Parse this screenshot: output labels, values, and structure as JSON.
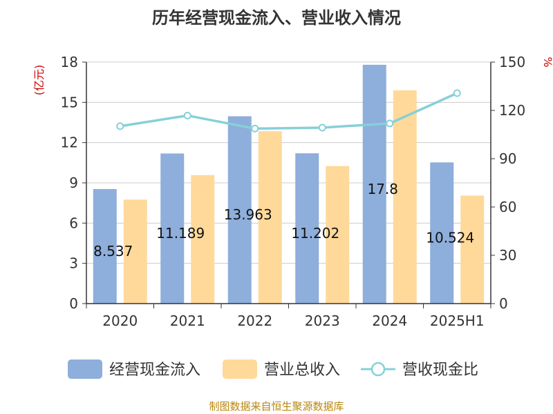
{
  "chart_data": {
    "type": "bar",
    "title": "历年经营现金流入、营业收入情况",
    "categories": [
      "2020",
      "2021",
      "2022",
      "2023",
      "2024",
      "2025H1"
    ],
    "y_left": {
      "unit": "(亿元)",
      "min": 0,
      "max": 18,
      "ticks": [
        "0",
        "3",
        "6",
        "9",
        "12",
        "15",
        "18"
      ]
    },
    "y_right": {
      "unit": "%",
      "min": 0,
      "max": 150,
      "ticks": [
        "0",
        "30",
        "60",
        "90",
        "120",
        "150"
      ]
    },
    "series": [
      {
        "name": "经营现金流入",
        "type": "bar",
        "axis": "left",
        "color": "#8eaedb",
        "values": [
          8.537,
          11.189,
          13.963,
          11.202,
          17.8,
          10.524
        ],
        "labels": [
          "8.537",
          "11.189",
          "13.963",
          "11.202",
          "17.8",
          "10.524"
        ]
      },
      {
        "name": "营业总收入",
        "type": "bar",
        "axis": "left",
        "color": "#ffd99a",
        "values": [
          7.75,
          9.58,
          12.85,
          10.25,
          15.9,
          8.05
        ]
      },
      {
        "name": "营收现金比",
        "type": "line",
        "axis": "right",
        "color": "#86d0d8",
        "values": [
          110.2,
          116.8,
          108.7,
          109.3,
          111.9,
          130.7
        ]
      }
    ],
    "grid": true,
    "legend": "bottom"
  },
  "footer": "制图数据来自恒生聚源数据库"
}
